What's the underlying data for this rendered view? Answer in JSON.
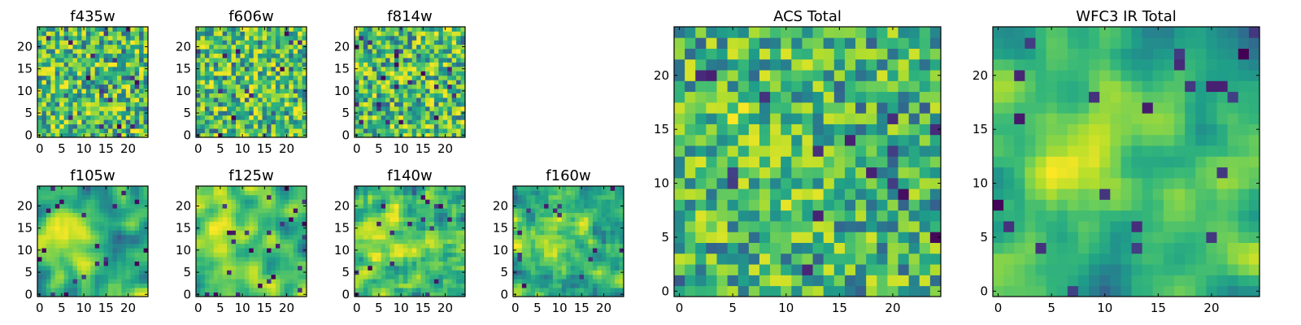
{
  "chart_data": [
    {
      "type": "heatmap",
      "title": "f435w",
      "xlim": [
        0,
        25
      ],
      "ylim": [
        0,
        25
      ],
      "xticks": [
        "0",
        "5",
        "10",
        "15",
        "20"
      ],
      "yticks": [
        "0",
        "5",
        "10",
        "15",
        "20"
      ],
      "colormap": "viridis",
      "pixel_size": 1,
      "smoothness": 0
    },
    {
      "type": "heatmap",
      "title": "f606w",
      "xlim": [
        0,
        25
      ],
      "ylim": [
        0,
        25
      ],
      "xticks": [
        "0",
        "5",
        "10",
        "15",
        "20"
      ],
      "yticks": [
        "0",
        "5",
        "10",
        "15",
        "20"
      ],
      "colormap": "viridis",
      "pixel_size": 1,
      "smoothness": 0
    },
    {
      "type": "heatmap",
      "title": "f814w",
      "xlim": [
        0,
        25
      ],
      "ylim": [
        0,
        25
      ],
      "xticks": [
        "0",
        "5",
        "10",
        "15",
        "20"
      ],
      "yticks": [
        "0",
        "5",
        "10",
        "15",
        "20"
      ],
      "colormap": "viridis",
      "pixel_size": 1,
      "smoothness": 0
    },
    {
      "type": "heatmap",
      "title": "f105w",
      "xlim": [
        0,
        25
      ],
      "ylim": [
        0,
        25
      ],
      "xticks": [
        "0",
        "5",
        "10",
        "15",
        "20"
      ],
      "yticks": [
        "0",
        "5",
        "10",
        "15",
        "20"
      ],
      "colormap": "viridis",
      "pixel_size": 1,
      "smoothness": 0.6
    },
    {
      "type": "heatmap",
      "title": "f125w",
      "xlim": [
        0,
        25
      ],
      "ylim": [
        0,
        25
      ],
      "xticks": [
        "0",
        "5",
        "10",
        "15",
        "20"
      ],
      "yticks": [
        "0",
        "5",
        "10",
        "15",
        "20"
      ],
      "colormap": "viridis",
      "pixel_size": 1,
      "smoothness": 0.5
    },
    {
      "type": "heatmap",
      "title": "f140w",
      "xlim": [
        0,
        25
      ],
      "ylim": [
        0,
        25
      ],
      "xticks": [
        "0",
        "5",
        "10",
        "15",
        "20"
      ],
      "yticks": [
        "0",
        "5",
        "10",
        "15",
        "20"
      ],
      "colormap": "viridis",
      "pixel_size": 1,
      "smoothness": 0.4
    },
    {
      "type": "heatmap",
      "title": "f160w",
      "xlim": [
        0,
        25
      ],
      "ylim": [
        0,
        25
      ],
      "xticks": [
        "0",
        "5",
        "10",
        "15",
        "20"
      ],
      "yticks": [
        "0",
        "5",
        "10",
        "15",
        "20"
      ],
      "colormap": "viridis",
      "pixel_size": 1,
      "smoothness": 0.4
    },
    {
      "type": "heatmap",
      "title": "ACS Total",
      "xlim": [
        0,
        25
      ],
      "ylim": [
        0,
        25
      ],
      "xticks": [
        "0",
        "5",
        "10",
        "15",
        "20"
      ],
      "yticks": [
        "0",
        "5",
        "10",
        "15",
        "20"
      ],
      "colormap": "viridis",
      "pixel_size": 1,
      "smoothness": 0.1
    },
    {
      "type": "heatmap",
      "title": "WFC3 IR Total",
      "xlim": [
        0,
        25
      ],
      "ylim": [
        0,
        25
      ],
      "xticks": [
        "0",
        "5",
        "10",
        "15",
        "20"
      ],
      "yticks": [
        "0",
        "5",
        "10",
        "15",
        "20"
      ],
      "colormap": "viridis",
      "pixel_size": 1,
      "smoothness": 0.75
    }
  ],
  "colors": {
    "frame": "#000000",
    "background": "#ffffff",
    "colormap_low": "#440154",
    "colormap_high": "#fde725"
  }
}
